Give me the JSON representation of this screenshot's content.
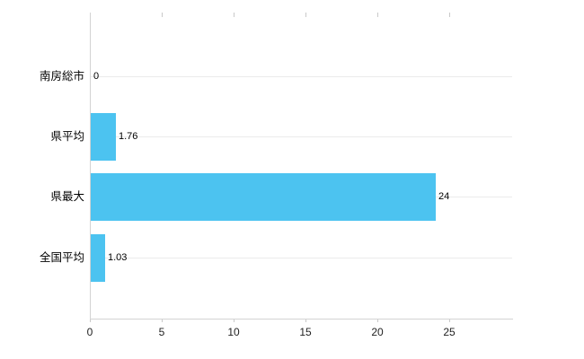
{
  "chart_data": {
    "type": "bar",
    "orientation": "horizontal",
    "title": "",
    "xlabel": "",
    "ylabel": "",
    "categories": [
      "南房総市",
      "県平均",
      "県最大",
      "全国平均"
    ],
    "values": [
      0,
      1.76,
      24,
      1.03
    ],
    "value_labels": [
      "0",
      "1.76",
      "24",
      "1.03"
    ],
    "x_ticks": [
      0,
      5,
      10,
      15,
      20,
      25
    ],
    "x_tick_labels": [
      "0",
      "5",
      "10",
      "15",
      "20",
      "25"
    ],
    "xlim": [
      0,
      29.4
    ],
    "grid": true,
    "legend": "none",
    "bar_color": "#4cc3f0",
    "axis_color": "#d3d3d3",
    "grid_color": "#ebebeb",
    "background_color": "#ffffff"
  }
}
